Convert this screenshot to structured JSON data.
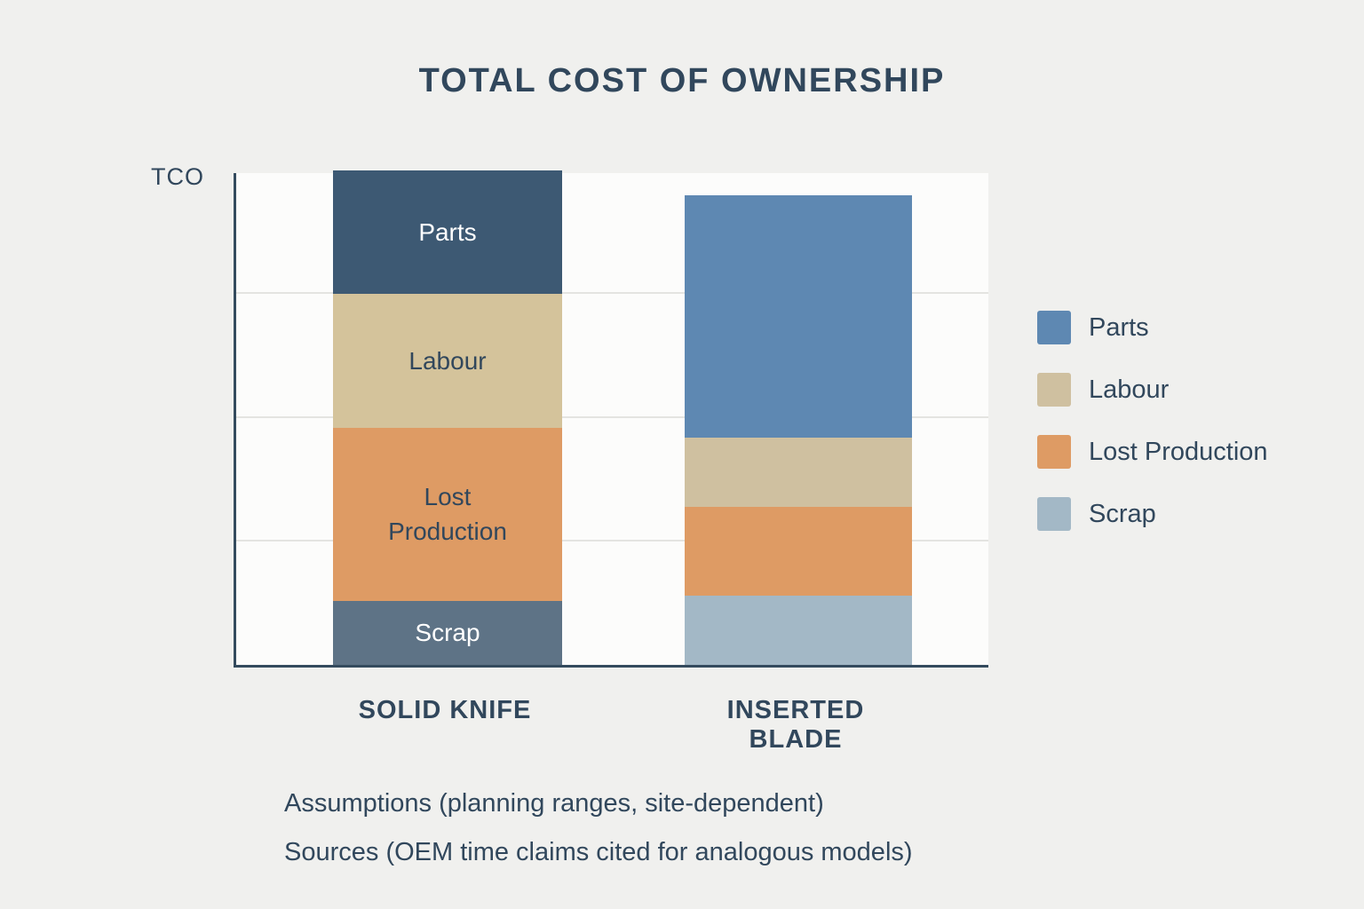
{
  "page": {
    "background_color": "#f0f0ee",
    "text_color": "#31475c"
  },
  "footer": {
    "line1": "Assumptions (planning ranges, site-dependent)",
    "line2": "Sources (OEM time claims cited for analogous models)"
  },
  "legend": {
    "position": "right",
    "items": [
      {
        "label": "Parts",
        "color": "#5e88b2"
      },
      {
        "label": "Labour",
        "color": "#cfc0a0"
      },
      {
        "label": "Lost Production",
        "color": "#de9b64"
      },
      {
        "label": "Scrap",
        "color": "#a3b8c6"
      }
    ]
  },
  "chart_data": {
    "type": "bar",
    "stacked": true,
    "title": "TOTAL COST OF OWNERSHIP",
    "ylabel": "TCO",
    "xlabel": "",
    "ylim": [
      0,
      100
    ],
    "grid": true,
    "gridlines_at": [
      25,
      50,
      75
    ],
    "legend_position": "right",
    "categories": [
      "SOLID KNIFE",
      "INSERTED BLADE"
    ],
    "totals": [
      100,
      95
    ],
    "series": [
      {
        "name": "Parts",
        "values": [
          25,
          49
        ],
        "colors": [
          "#3d5973",
          "#5e88b2"
        ],
        "in_bar_labels": [
          {
            "text": "Parts",
            "color": "#ffffff"
          },
          null
        ]
      },
      {
        "name": "Labour",
        "values": [
          27,
          14
        ],
        "colors": [
          "#d4c39b",
          "#cfc0a0"
        ],
        "in_bar_labels": [
          {
            "text": "Labour",
            "color": "#31475c"
          },
          null
        ]
      },
      {
        "name": "Lost Production",
        "values": [
          35,
          18
        ],
        "colors": [
          "#de9b64",
          "#de9b64"
        ],
        "in_bar_labels": [
          {
            "text": "Lost Production",
            "color": "#31475c"
          },
          null
        ]
      },
      {
        "name": "Scrap",
        "values": [
          13,
          14
        ],
        "colors": [
          "#5e7386",
          "#a3b8c6"
        ],
        "in_bar_labels": [
          {
            "text": "Scrap",
            "color": "#ffffff"
          },
          null
        ]
      }
    ]
  }
}
